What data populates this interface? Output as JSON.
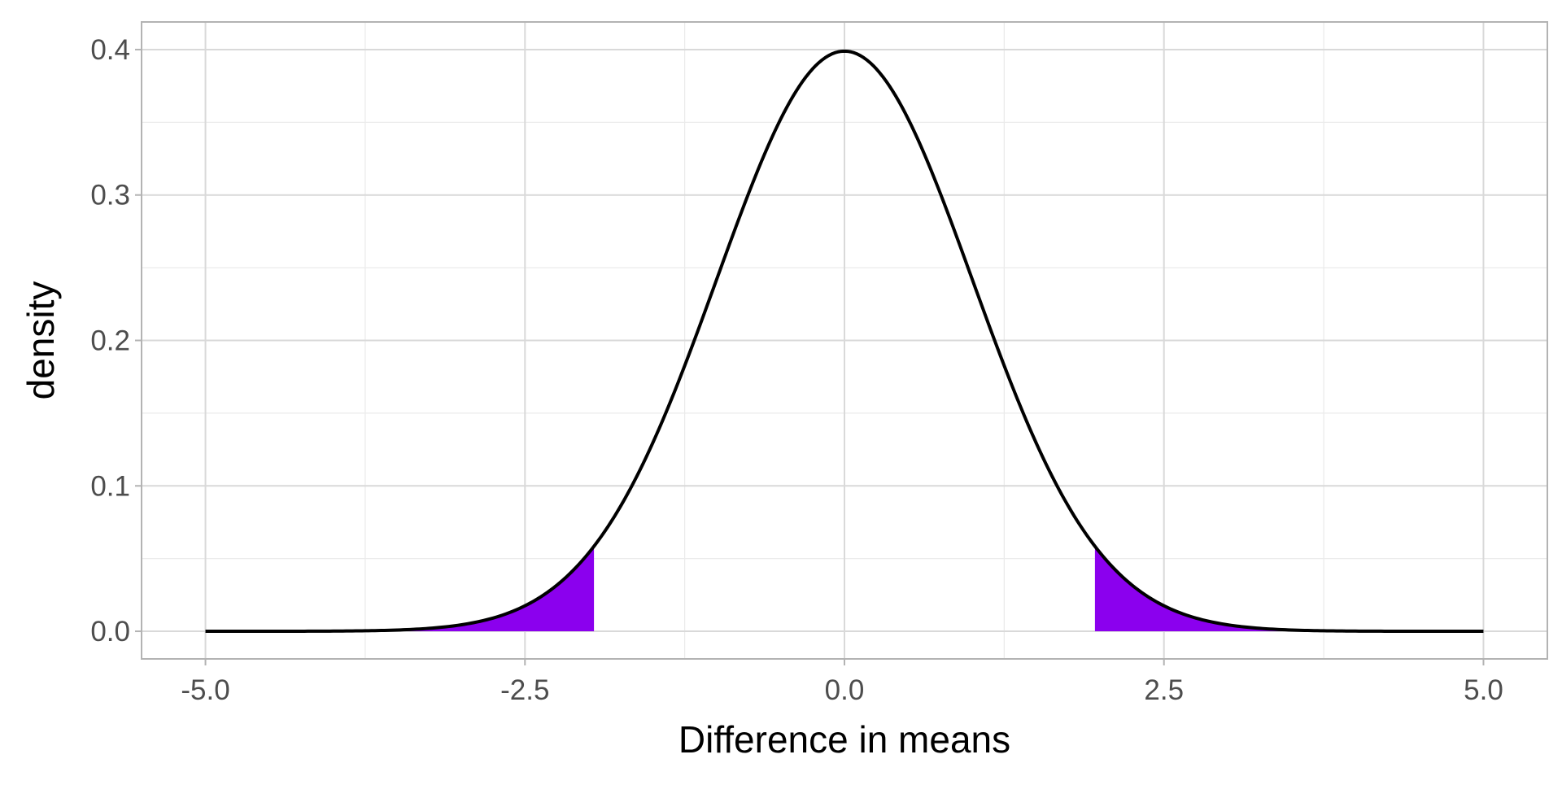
{
  "chart_data": {
    "type": "area",
    "title": "",
    "xlabel": "Difference in means",
    "ylabel": "density",
    "xlim": [
      -5.5,
      5.5
    ],
    "ylim": [
      -0.019,
      0.419
    ],
    "x_ticks": [
      -5.0,
      -2.5,
      0.0,
      2.5,
      5.0
    ],
    "x_tick_labels": [
      "-5.0",
      "-2.5",
      "0.0",
      "2.5",
      "5.0"
    ],
    "y_ticks": [
      0.0,
      0.1,
      0.2,
      0.3,
      0.4
    ],
    "y_tick_labels": [
      "0.0",
      "0.1",
      "0.2",
      "0.3",
      "0.4"
    ],
    "grid": true,
    "curve": {
      "distribution": "standard normal density",
      "x_range": [
        -5.0,
        5.0
      ],
      "color": "#000000",
      "points": [
        {
          "x": -5.0,
          "y": 0.0
        },
        {
          "x": -4.0,
          "y": 0.0001
        },
        {
          "x": -3.5,
          "y": 0.0009
        },
        {
          "x": -3.0,
          "y": 0.0044
        },
        {
          "x": -2.5,
          "y": 0.0175
        },
        {
          "x": -2.0,
          "y": 0.054
        },
        {
          "x": -1.5,
          "y": 0.1295
        },
        {
          "x": -1.0,
          "y": 0.242
        },
        {
          "x": -0.5,
          "y": 0.3521
        },
        {
          "x": 0.0,
          "y": 0.3989
        },
        {
          "x": 0.5,
          "y": 0.3521
        },
        {
          "x": 1.0,
          "y": 0.242
        },
        {
          "x": 1.5,
          "y": 0.1295
        },
        {
          "x": 2.0,
          "y": 0.054
        },
        {
          "x": 2.5,
          "y": 0.0175
        },
        {
          "x": 3.0,
          "y": 0.0044
        },
        {
          "x": 3.5,
          "y": 0.0009
        },
        {
          "x": 4.0,
          "y": 0.0001
        },
        {
          "x": 5.0,
          "y": 0.0
        }
      ]
    },
    "shaded_regions": [
      {
        "x_from": -5.0,
        "x_to": -1.96,
        "color": "#8b00ee"
      },
      {
        "x_from": 1.96,
        "x_to": 5.0,
        "color": "#8b00ee"
      }
    ]
  }
}
